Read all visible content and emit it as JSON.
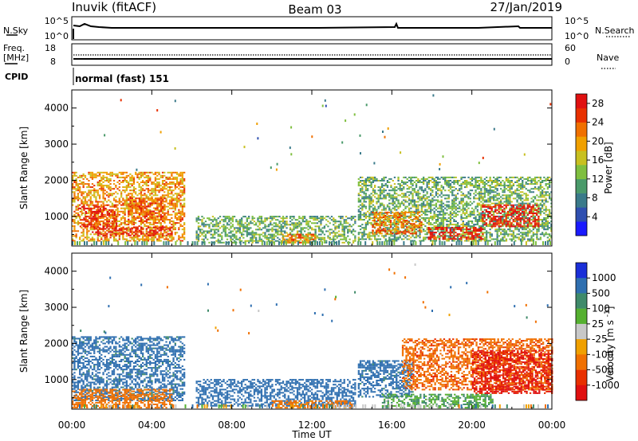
{
  "header": {
    "station": "Inuvik (fitACF)",
    "beam": "Beam 03",
    "date": "27/Jan/2019"
  },
  "strip_panels": {
    "nsky_label": "N.Sky",
    "nsearch_label": "N.Search",
    "noise_left_top": "10^5",
    "noise_left_bottom": "10^0",
    "noise_right_top": "10^5",
    "noise_right_bottom": "10^0",
    "freq_label_line1": "Freq.",
    "freq_label_line2": "[MHz]",
    "freq_ticks": [
      "18",
      "8"
    ],
    "nave_label": "Nave",
    "nave_ticks": [
      "60",
      "0"
    ],
    "cpid_label": "CPID",
    "cpid_value": "normal (fast) 151"
  },
  "chart_data": [
    {
      "type": "heatmap",
      "name": "power",
      "ylabel": "Slant Range [km]",
      "xlabel": "",
      "x_ticks": [
        "00:00",
        "04:00",
        "08:00",
        "12:00",
        "16:00",
        "20:00",
        "00:00"
      ],
      "x_range_hours": [
        0,
        24
      ],
      "y_ticks": [
        1000,
        2000,
        3000,
        4000
      ],
      "y_range_km": [
        180,
        4500
      ],
      "colorbar": {
        "label": "Power [dB]",
        "ticks": [
          "4",
          "8",
          "12",
          "16",
          "20",
          "24",
          "28"
        ],
        "range": [
          0,
          30
        ],
        "colors": [
          "#1a1aff",
          "#2f4fb0",
          "#3a7a8a",
          "#4a9a6a",
          "#7fbf3f",
          "#c8c020",
          "#f0a000",
          "#f07000",
          "#e83000",
          "#e01010"
        ]
      },
      "regions": [
        {
          "t0": 0.0,
          "t1": 5.6,
          "r0": 300,
          "r1": 2200,
          "level": 20
        },
        {
          "t0": 0.3,
          "t1": 2.2,
          "r0": 700,
          "r1": 1300,
          "level": 26
        },
        {
          "t0": 2.8,
          "t1": 4.6,
          "r0": 800,
          "r1": 1500,
          "level": 24
        },
        {
          "t0": 1.0,
          "t1": 5.0,
          "r0": 450,
          "r1": 700,
          "level": 27
        },
        {
          "t0": 6.2,
          "t1": 14.2,
          "r0": 250,
          "r1": 1000,
          "level": 12
        },
        {
          "t0": 10.5,
          "t1": 12.2,
          "r0": 250,
          "r1": 500,
          "level": 22
        },
        {
          "t0": 14.3,
          "t1": 24.0,
          "r0": 300,
          "r1": 2100,
          "level": 12
        },
        {
          "t0": 15.0,
          "t1": 17.5,
          "r0": 500,
          "r1": 1100,
          "level": 22
        },
        {
          "t0": 17.8,
          "t1": 20.5,
          "r0": 350,
          "r1": 700,
          "level": 28
        },
        {
          "t0": 20.5,
          "t1": 23.3,
          "r0": 700,
          "r1": 1300,
          "level": 28
        }
      ]
    },
    {
      "type": "heatmap",
      "name": "velocity",
      "ylabel": "Slant Range [km]",
      "xlabel": "Time UT",
      "x_ticks": [
        "00:00",
        "04:00",
        "08:00",
        "12:00",
        "16:00",
        "20:00",
        "00:00"
      ],
      "x_range_hours": [
        0,
        24
      ],
      "y_ticks": [
        1000,
        2000,
        3000,
        4000
      ],
      "y_range_km": [
        180,
        4500
      ],
      "colorbar": {
        "label": "Velocity [m s^-1]",
        "ticks": [
          "1000",
          "500",
          "100",
          "25",
          "-25",
          "-100",
          "-500",
          "-1000"
        ],
        "colors": [
          "#1a2fd8",
          "#2f6fb0",
          "#3f8a6a",
          "#55b030",
          "#c8c8c8",
          "#f0a000",
          "#f07000",
          "#e83000",
          "#e01010"
        ]
      },
      "regions": [
        {
          "t0": 0.0,
          "t1": 5.6,
          "r0": 400,
          "r1": 2200,
          "velocity": 150
        },
        {
          "t0": 0.0,
          "t1": 5.0,
          "r0": 200,
          "r1": 700,
          "velocity": -200
        },
        {
          "t0": 6.2,
          "t1": 14.2,
          "r0": 250,
          "r1": 1000,
          "velocity": 200
        },
        {
          "t0": 10.0,
          "t1": 14.0,
          "r0": 200,
          "r1": 400,
          "velocity": -150
        },
        {
          "t0": 14.3,
          "t1": 17.0,
          "r0": 500,
          "r1": 1500,
          "velocity": 150
        },
        {
          "t0": 16.5,
          "t1": 24.0,
          "r0": 700,
          "r1": 2100,
          "velocity": -250
        },
        {
          "t0": 15.5,
          "t1": 21.0,
          "r0": 200,
          "r1": 600,
          "velocity": 60
        },
        {
          "t0": 20.0,
          "t1": 24.0,
          "r0": 600,
          "r1": 1800,
          "velocity": -600
        }
      ]
    }
  ]
}
